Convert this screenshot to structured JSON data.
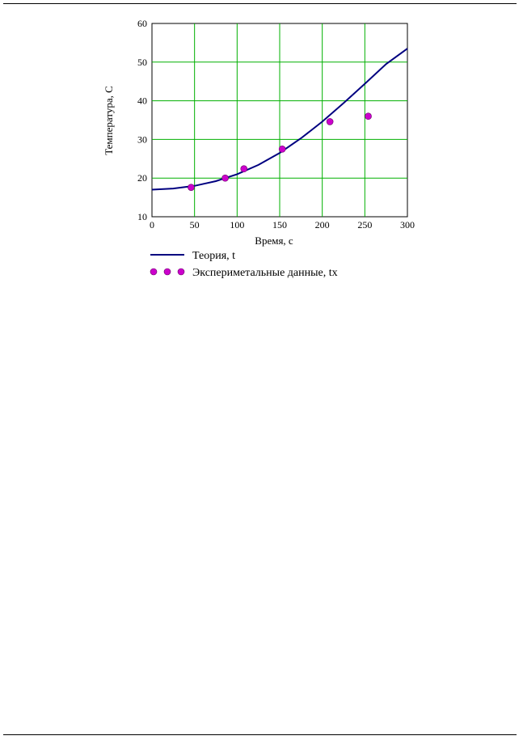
{
  "chart_data": {
    "type": "line",
    "xlabel": "Время, с",
    "ylabel": "Температура, С",
    "xlim": [
      0,
      300
    ],
    "ylim": [
      10,
      60
    ],
    "xticks": [
      "0",
      "50",
      "100",
      "150",
      "200",
      "250",
      "300"
    ],
    "yticks": [
      "10",
      "20",
      "30",
      "40",
      "50",
      "60"
    ],
    "grid": true,
    "legend_position": "bottom",
    "series": [
      {
        "name": "Теория, t",
        "kind": "line",
        "color": "#000080",
        "x": [
          0,
          25,
          50,
          75,
          100,
          125,
          150,
          175,
          200,
          225,
          250,
          275,
          300
        ],
        "y": [
          17.0,
          17.3,
          18.0,
          19.2,
          21.0,
          23.4,
          26.5,
          30.3,
          34.6,
          39.4,
          44.4,
          49.5,
          53.5
        ]
      },
      {
        "name": "Экспериметальные данные, tx",
        "kind": "scatter",
        "color": "#cc00cc",
        "x": [
          46,
          86,
          108,
          153,
          209,
          254
        ],
        "y": [
          17.6,
          20.0,
          22.4,
          27.5,
          34.6,
          36.0
        ]
      }
    ]
  }
}
